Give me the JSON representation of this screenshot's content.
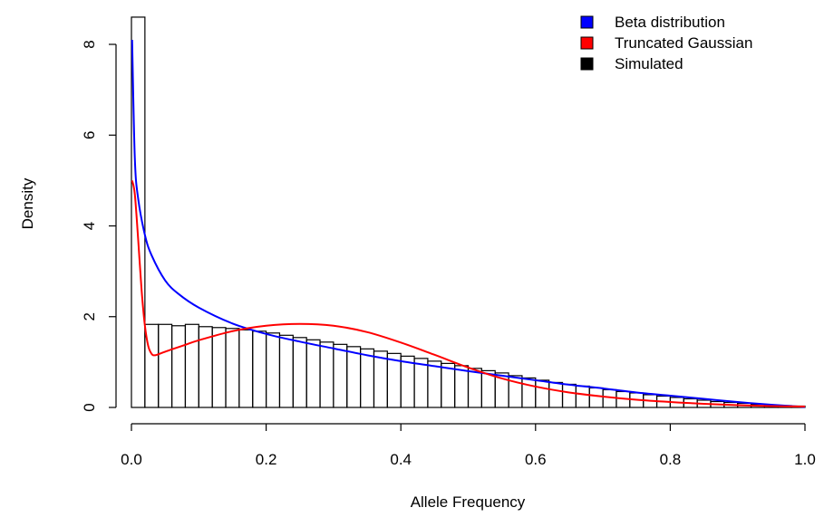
{
  "chart_data": {
    "type": "bar",
    "title": "",
    "xlabel": "Allele Frequency",
    "ylabel": "Density",
    "xlim": [
      0.0,
      1.0
    ],
    "ylim": [
      0,
      8.6
    ],
    "x_ticks": [
      0.0,
      0.2,
      0.4,
      0.6,
      0.8,
      1.0
    ],
    "x_tick_labels": [
      "0.0",
      "0.2",
      "0.4",
      "0.6",
      "0.8",
      "1.0"
    ],
    "y_ticks": [
      0,
      2,
      4,
      6,
      8
    ],
    "y_tick_labels": [
      "0",
      "2",
      "4",
      "6",
      "8"
    ],
    "grid": false,
    "legend": {
      "position": "top-right",
      "entries": [
        {
          "label": "Beta distribution",
          "color": "#0000ff"
        },
        {
          "label": "Truncated Gaussian",
          "color": "#ff0000"
        },
        {
          "label": "Simulated",
          "color": "#000000"
        }
      ]
    },
    "histogram": {
      "name": "Simulated",
      "bin_width": 0.02,
      "bin_starts": [
        0.0,
        0.02,
        0.04,
        0.06,
        0.08,
        0.1,
        0.12,
        0.14,
        0.16,
        0.18,
        0.2,
        0.22,
        0.24,
        0.26,
        0.28,
        0.3,
        0.32,
        0.34,
        0.36,
        0.38,
        0.4,
        0.42,
        0.44,
        0.46,
        0.48,
        0.5,
        0.52,
        0.54,
        0.56,
        0.58,
        0.6,
        0.62,
        0.64,
        0.66,
        0.68,
        0.7,
        0.72,
        0.74,
        0.76,
        0.78,
        0.8,
        0.82,
        0.84,
        0.86,
        0.88,
        0.9,
        0.92,
        0.94,
        0.96,
        0.98
      ],
      "densities": [
        8.6,
        1.83,
        1.83,
        1.8,
        1.83,
        1.78,
        1.76,
        1.74,
        1.71,
        1.68,
        1.64,
        1.59,
        1.54,
        1.49,
        1.44,
        1.39,
        1.34,
        1.29,
        1.24,
        1.19,
        1.13,
        1.08,
        1.02,
        0.97,
        0.92,
        0.86,
        0.81,
        0.76,
        0.7,
        0.65,
        0.6,
        0.55,
        0.51,
        0.47,
        0.43,
        0.39,
        0.35,
        0.32,
        0.28,
        0.25,
        0.22,
        0.19,
        0.16,
        0.13,
        0.11,
        0.09,
        0.07,
        0.05,
        0.04,
        0.03
      ]
    },
    "series": [
      {
        "name": "Beta distribution",
        "color": "#0000ff",
        "x": [
          0.001,
          0.005,
          0.01,
          0.02,
          0.03,
          0.05,
          0.07,
          0.1,
          0.15,
          0.2,
          0.25,
          0.3,
          0.35,
          0.4,
          0.45,
          0.5,
          0.55,
          0.6,
          0.65,
          0.7,
          0.75,
          0.8,
          0.85,
          0.9,
          0.95,
          0.99,
          1.0
        ],
        "y": [
          8.1,
          5.5,
          4.6,
          3.8,
          3.35,
          2.8,
          2.5,
          2.2,
          1.85,
          1.62,
          1.45,
          1.3,
          1.15,
          1.02,
          0.91,
          0.8,
          0.7,
          0.6,
          0.5,
          0.42,
          0.33,
          0.26,
          0.19,
          0.12,
          0.06,
          0.02,
          0.01
        ]
      },
      {
        "name": "Truncated Gaussian",
        "color": "#ff0000",
        "x": [
          0.001,
          0.005,
          0.01,
          0.015,
          0.02,
          0.025,
          0.03,
          0.035,
          0.045,
          0.06,
          0.08,
          0.1,
          0.15,
          0.2,
          0.25,
          0.3,
          0.35,
          0.4,
          0.45,
          0.5,
          0.55,
          0.6,
          0.65,
          0.7,
          0.75,
          0.8,
          0.85,
          0.9,
          0.95,
          1.0
        ],
        "y": [
          5.0,
          4.7,
          3.7,
          2.6,
          1.8,
          1.35,
          1.18,
          1.15,
          1.2,
          1.28,
          1.38,
          1.48,
          1.68,
          1.8,
          1.84,
          1.8,
          1.66,
          1.43,
          1.16,
          0.88,
          0.64,
          0.46,
          0.33,
          0.24,
          0.17,
          0.12,
          0.08,
          0.05,
          0.03,
          0.02
        ]
      }
    ]
  }
}
